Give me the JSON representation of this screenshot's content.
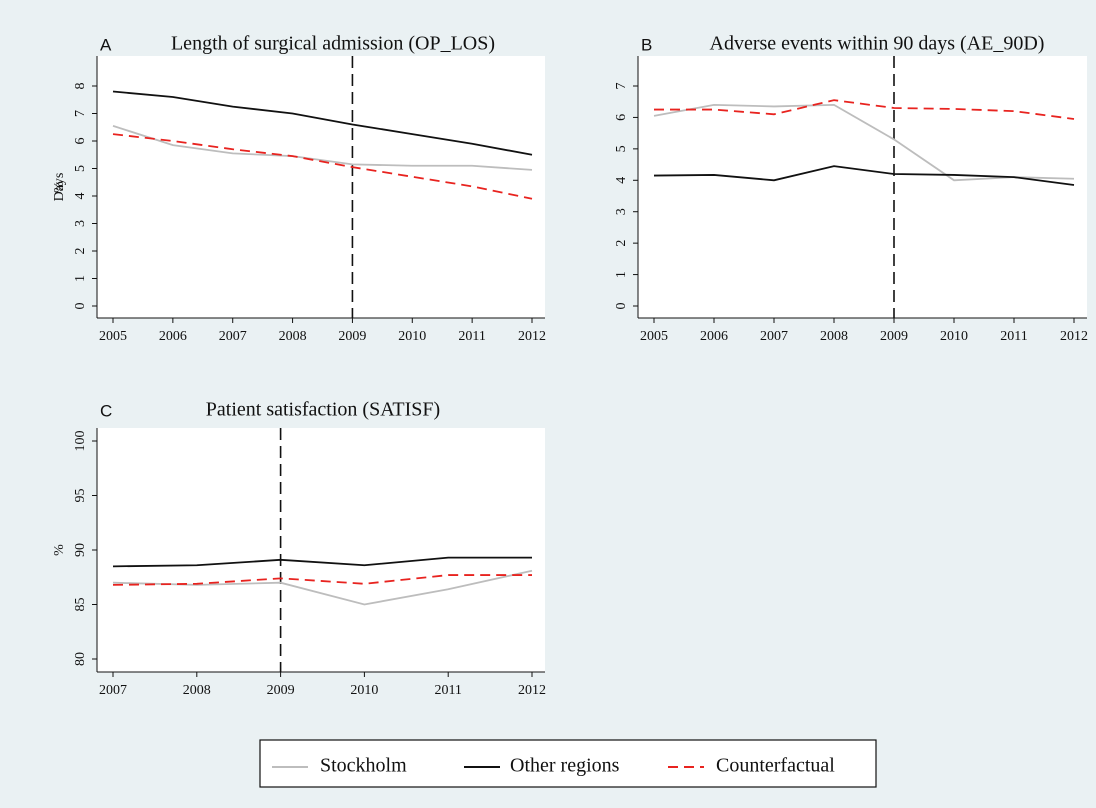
{
  "chart_data": [
    {
      "type": "line",
      "letter": "A",
      "title": "Length of surgical admission (OP_LOS)",
      "y_label": "Days",
      "x": [
        2005,
        2006,
        2007,
        2008,
        2009,
        2010,
        2011,
        2012
      ],
      "xlim": [
        2005,
        2012
      ],
      "xticks": [
        2005,
        2006,
        2007,
        2008,
        2009,
        2010,
        2011,
        2012
      ],
      "ylim": [
        0,
        8
      ],
      "yticks": [
        0,
        1,
        2,
        3,
        4,
        5,
        6,
        7,
        8
      ],
      "vline": 2009,
      "series": [
        {
          "name": "Stockholm",
          "color": "#bdbdbd",
          "dashed": false,
          "values": [
            6.55,
            5.85,
            5.55,
            5.45,
            5.15,
            5.1,
            5.1,
            4.95
          ]
        },
        {
          "name": "Other regions",
          "color": "#111111",
          "dashed": false,
          "values": [
            7.8,
            7.6,
            7.25,
            7.0,
            6.6,
            6.25,
            5.9,
            5.5
          ]
        },
        {
          "name": "Counterfactual",
          "color": "#e8231f",
          "dashed": true,
          "values": [
            6.25,
            6.0,
            5.7,
            5.45,
            5.05,
            4.7,
            4.35,
            3.9
          ]
        }
      ]
    },
    {
      "type": "line",
      "letter": "B",
      "title": "Adverse events within 90 days (AE_90D)",
      "y_label": "%",
      "x": [
        2005,
        2006,
        2007,
        2008,
        2009,
        2010,
        2011,
        2012
      ],
      "xlim": [
        2005,
        2012
      ],
      "xticks": [
        2005,
        2006,
        2007,
        2008,
        2009,
        2010,
        2011,
        2012
      ],
      "ylim": [
        0,
        7
      ],
      "yticks": [
        0,
        1,
        2,
        3,
        4,
        5,
        6,
        7
      ],
      "vline": 2009,
      "series": [
        {
          "name": "Stockholm",
          "color": "#bdbdbd",
          "dashed": false,
          "values": [
            6.05,
            6.4,
            6.35,
            6.4,
            5.3,
            4.0,
            4.1,
            4.05
          ]
        },
        {
          "name": "Other regions",
          "color": "#111111",
          "dashed": false,
          "values": [
            4.15,
            4.17,
            4.0,
            4.45,
            4.2,
            4.17,
            4.1,
            3.85
          ]
        },
        {
          "name": "Counterfactual",
          "color": "#e8231f",
          "dashed": true,
          "values": [
            6.25,
            6.25,
            6.1,
            6.55,
            6.3,
            6.27,
            6.2,
            5.95
          ]
        }
      ]
    },
    {
      "type": "line",
      "letter": "C",
      "title": "Patient satisfaction (SATISF)",
      "y_label": "%",
      "x": [
        2007,
        2008,
        2009,
        2010,
        2011,
        2012
      ],
      "xlim": [
        2007,
        2012
      ],
      "xticks": [
        2007,
        2008,
        2009,
        2010,
        2011,
        2012
      ],
      "ylim": [
        80,
        100
      ],
      "yticks": [
        80,
        85,
        90,
        95,
        100
      ],
      "vline": 2009,
      "series": [
        {
          "name": "Stockholm",
          "color": "#bdbdbd",
          "dashed": false,
          "values": [
            87.0,
            86.8,
            87.0,
            85.0,
            86.4,
            88.1
          ]
        },
        {
          "name": "Other regions",
          "color": "#111111",
          "dashed": false,
          "values": [
            88.5,
            88.6,
            89.1,
            88.6,
            89.3,
            89.3
          ]
        },
        {
          "name": "Counterfactual",
          "color": "#e8231f",
          "dashed": true,
          "values": [
            86.8,
            86.9,
            87.4,
            86.9,
            87.7,
            87.7
          ]
        }
      ]
    }
  ]
}
